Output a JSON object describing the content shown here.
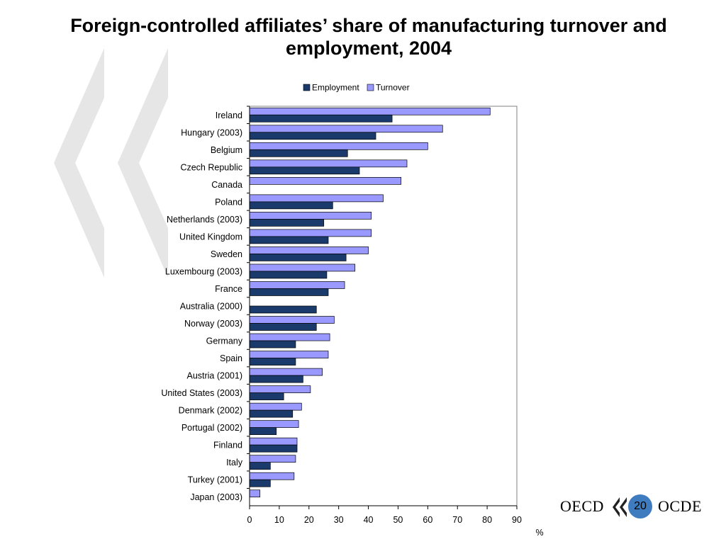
{
  "slide": {
    "title": "Foreign-controlled affiliates’ share of manufacturing turnover and employment, 2004",
    "page_number": "20"
  },
  "logo": {
    "left_text": "OECD",
    "right_text": "OCDE"
  },
  "colors": {
    "employment": "#1a3a6b",
    "turnover": "#9999ff",
    "watermark": "#e6e6e6",
    "badge": "#3f7bbf"
  },
  "chart_data": {
    "type": "bar",
    "orientation": "horizontal",
    "title": "",
    "xlabel": "%",
    "xlim": [
      0,
      90
    ],
    "xticks": [
      0,
      10,
      20,
      30,
      40,
      50,
      60,
      70,
      80,
      90
    ],
    "legend_position": "top",
    "categories": [
      "Ireland",
      "Hungary (2003)",
      "Belgium",
      "Czech Republic",
      "Canada",
      "Poland",
      "Netherlands (2003)",
      "United Kingdom",
      "Sweden",
      "Luxembourg (2003)",
      "France",
      "Australia (2000)",
      "Norway (2003)",
      "Germany",
      "Spain",
      "Austria (2001)",
      "United States (2003)",
      "Denmark (2002)",
      "Portugal (2002)",
      "Finland",
      "Italy",
      "Turkey (2001)",
      "Japan (2003)"
    ],
    "series": [
      {
        "name": "Employment",
        "values": [
          48,
          42.5,
          33,
          37,
          null,
          28,
          25,
          26.5,
          32.5,
          26,
          26.5,
          22.5,
          22.5,
          15.5,
          15.5,
          18,
          11.5,
          14.5,
          9,
          16,
          7,
          7,
          null
        ]
      },
      {
        "name": "Turnover",
        "values": [
          81,
          65,
          60,
          53,
          51,
          45,
          41,
          41,
          40,
          35.5,
          32,
          null,
          28.5,
          27,
          26.5,
          24.5,
          20.5,
          17.5,
          16.5,
          16,
          15.5,
          15,
          3.5
        ]
      }
    ]
  }
}
